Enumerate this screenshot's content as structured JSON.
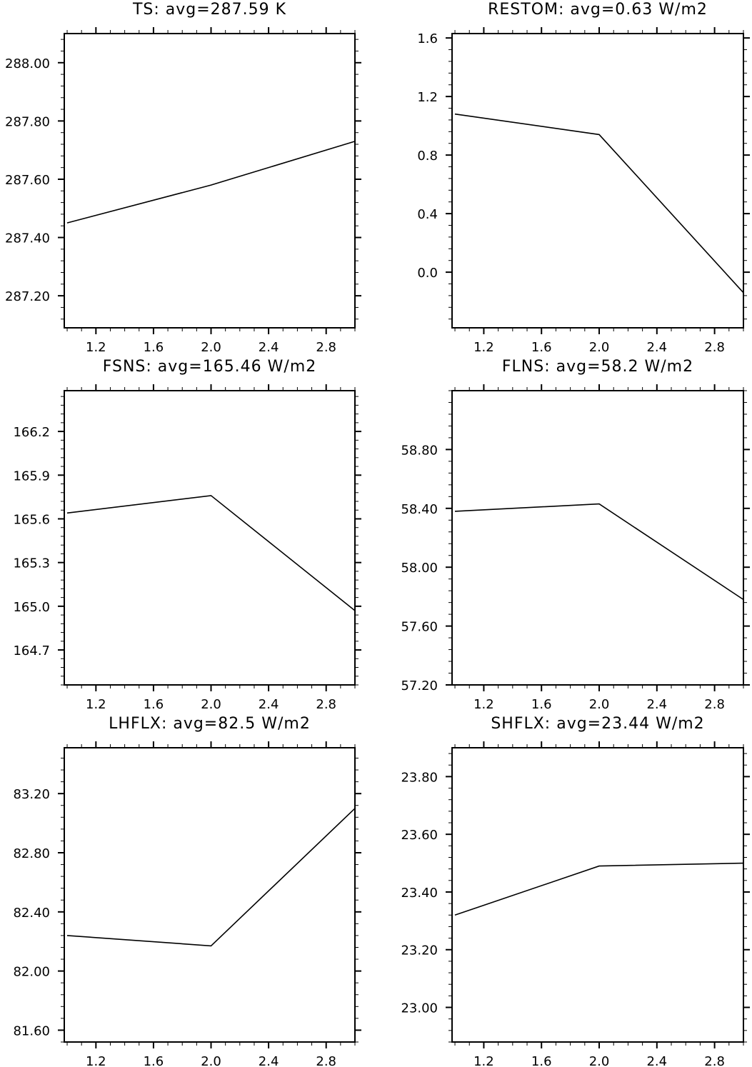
{
  "chart_data": [
    {
      "type": "line",
      "title": "TS: avg=287.59 K",
      "x": [
        1,
        2,
        3
      ],
      "values": [
        287.45,
        287.58,
        287.73
      ],
      "xlim": [
        0.98,
        3.0
      ],
      "ylim": [
        287.09,
        288.1
      ],
      "xticks": [
        "1.2",
        "1.6",
        "2.0",
        "2.4",
        "2.8"
      ],
      "yticks": [
        "287.20",
        "287.40",
        "287.60",
        "287.80",
        "288.00"
      ],
      "xlabel": "",
      "ylabel": ""
    },
    {
      "type": "line",
      "title": "RESTOM: avg=0.63 W/m2",
      "x": [
        1,
        2,
        3
      ],
      "values": [
        1.08,
        0.94,
        -0.14
      ],
      "xlim": [
        0.98,
        3.0
      ],
      "ylim": [
        -0.38,
        1.63
      ],
      "xticks": [
        "1.2",
        "1.6",
        "2.0",
        "2.4",
        "2.8"
      ],
      "yticks": [
        "0.0",
        "0.4",
        "0.8",
        "1.2",
        "1.6"
      ],
      "xlabel": "",
      "ylabel": ""
    },
    {
      "type": "line",
      "title": "FSNS: avg=165.46 W/m2",
      "x": [
        1,
        2,
        3
      ],
      "values": [
        165.64,
        165.76,
        164.97
      ],
      "xlim": [
        0.98,
        3.0
      ],
      "ylim": [
        164.46,
        166.48
      ],
      "xticks": [
        "1.2",
        "1.6",
        "2.0",
        "2.4",
        "2.8"
      ],
      "yticks": [
        "164.7",
        "165.0",
        "165.3",
        "165.6",
        "165.9",
        "166.2"
      ],
      "xlabel": "",
      "ylabel": ""
    },
    {
      "type": "line",
      "title": "FLNS: avg=58.2 W/m2",
      "x": [
        1,
        2,
        3
      ],
      "values": [
        58.38,
        58.43,
        57.78
      ],
      "xlim": [
        0.98,
        3.0
      ],
      "ylim": [
        57.2,
        59.2
      ],
      "xticks": [
        "1.2",
        "1.6",
        "2.0",
        "2.4",
        "2.8"
      ],
      "yticks": [
        "57.20",
        "57.60",
        "58.00",
        "58.40",
        "58.80"
      ],
      "xlabel": "",
      "ylabel": ""
    },
    {
      "type": "line",
      "title": "LHFLX: avg=82.5 W/m2",
      "x": [
        1,
        2,
        3
      ],
      "values": [
        82.24,
        82.17,
        83.1
      ],
      "xlim": [
        0.98,
        3.0
      ],
      "ylim": [
        81.52,
        83.51
      ],
      "xticks": [
        "1.2",
        "1.6",
        "2.0",
        "2.4",
        "2.8"
      ],
      "yticks": [
        "81.60",
        "82.00",
        "82.40",
        "82.80",
        "83.20"
      ],
      "xlabel": "",
      "ylabel": ""
    },
    {
      "type": "line",
      "title": "SHFLX: avg=23.44 W/m2",
      "x": [
        1,
        2,
        3
      ],
      "values": [
        23.32,
        23.49,
        23.5
      ],
      "xlim": [
        0.98,
        3.0
      ],
      "ylim": [
        22.88,
        23.9
      ],
      "xticks": [
        "1.2",
        "1.6",
        "2.0",
        "2.4",
        "2.8"
      ],
      "yticks": [
        "23.00",
        "23.20",
        "23.40",
        "23.60",
        "23.80"
      ],
      "xlabel": "",
      "ylabel": ""
    }
  ]
}
